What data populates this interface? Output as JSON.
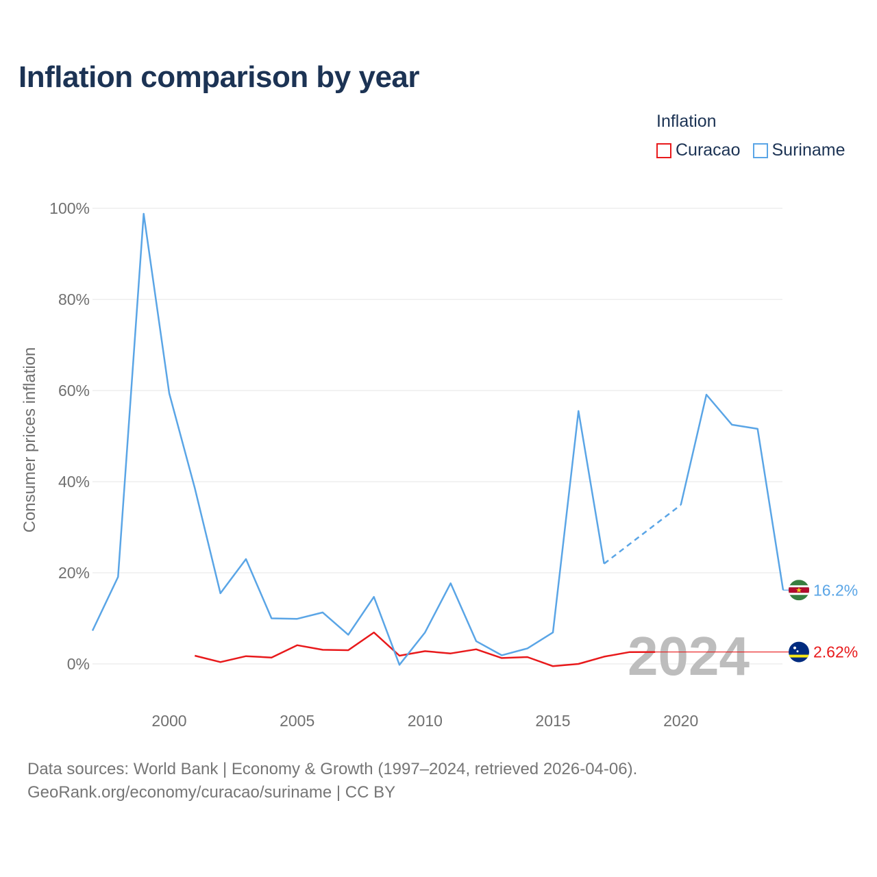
{
  "title": "Inflation comparison by year",
  "legend": {
    "title": "Inflation",
    "items": [
      {
        "label": "Curacao",
        "color": "#e8191b"
      },
      {
        "label": "Suriname",
        "color": "#5aa5e6"
      }
    ]
  },
  "source": {
    "line1": "Data sources: World Bank | Economy & Growth (1997–2024, retrieved 2026-04-06).",
    "line2": "GeoRank.org/economy/curacao/suriname | CC BY"
  },
  "chart_data": {
    "type": "line",
    "title": "Inflation comparison by year",
    "xlabel": "",
    "ylabel": "Consumer prices inflation",
    "xlim": [
      1997,
      2024
    ],
    "ylim": [
      -10,
      100
    ],
    "x_ticks": [
      2000,
      2005,
      2010,
      2015,
      2020
    ],
    "y_ticks": [
      0,
      20,
      40,
      60,
      80,
      100
    ],
    "y_tick_labels": [
      "0%",
      "20%",
      "40%",
      "60%",
      "80%",
      "100%"
    ],
    "current_year_label": "2024",
    "grid": true,
    "legend_position": "top-right",
    "series": [
      {
        "name": "Curacao",
        "color": "#e8191b",
        "x": [
          2001,
          2002,
          2003,
          2004,
          2005,
          2006,
          2007,
          2008,
          2009,
          2010,
          2011,
          2012,
          2013,
          2014,
          2015,
          2016,
          2017,
          2018,
          2019
        ],
        "values": [
          1.8,
          0.4,
          1.7,
          1.4,
          4.1,
          3.1,
          3.0,
          6.9,
          1.8,
          2.8,
          2.3,
          3.2,
          1.3,
          1.5,
          -0.5,
          0.0,
          1.6,
          2.6,
          2.62
        ],
        "end_value": 2.62,
        "end_label": "2.62%",
        "flag": "curacao-flag-icon"
      },
      {
        "name": "Suriname",
        "color": "#5aa5e6",
        "x": [
          1997,
          1998,
          1999,
          2000,
          2001,
          2002,
          2003,
          2004,
          2005,
          2006,
          2007,
          2008,
          2009,
          2010,
          2011,
          2012,
          2013,
          2014,
          2015,
          2016,
          2017,
          2020,
          2021,
          2022,
          2023,
          2024
        ],
        "values": [
          7.3,
          19.1,
          98.8,
          59.4,
          38.6,
          15.5,
          23.0,
          10.0,
          9.9,
          11.3,
          6.4,
          14.7,
          -0.2,
          6.9,
          17.7,
          5.0,
          1.9,
          3.4,
          6.9,
          55.5,
          22.0,
          34.9,
          59.1,
          52.5,
          51.6,
          16.2
        ],
        "gap_segments": [
          [
            2017,
            2020
          ]
        ],
        "end_value": 16.2,
        "end_label": "16.2%",
        "flag": "suriname-flag-icon"
      }
    ]
  }
}
